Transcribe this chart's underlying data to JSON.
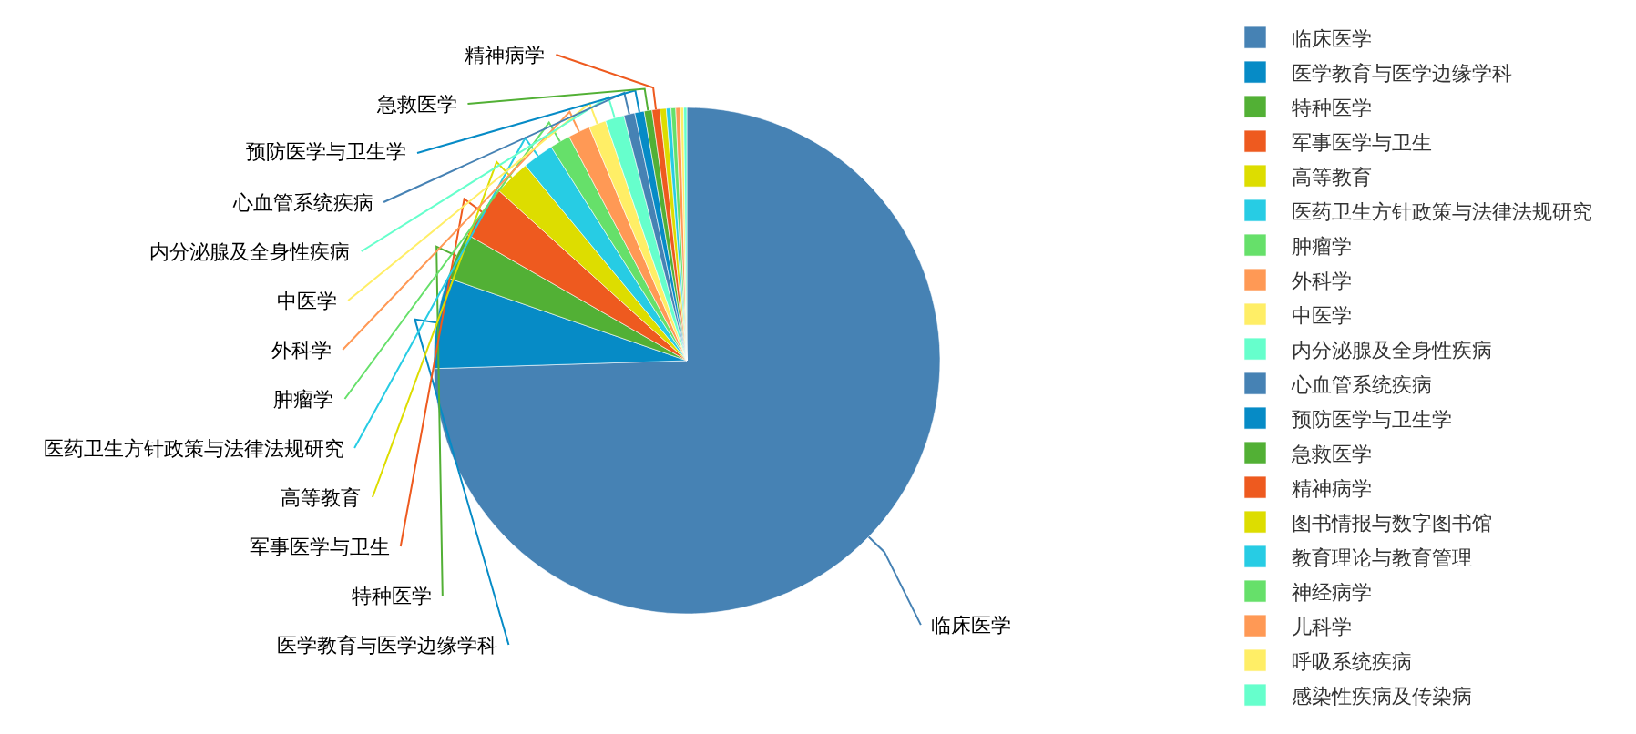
{
  "chart_data": {
    "type": "pie",
    "categories": [
      "临床医学",
      "医学教育与医学边缘学科",
      "特种医学",
      "军事医学与卫生",
      "高等教育",
      "医药卫生方针政策与法律法规研究",
      "肿瘤学",
      "外科学",
      "中医学",
      "内分泌腺及全身性疾病",
      "心血管系统疾病",
      "预防医学与卫生学",
      "急救医学",
      "精神病学",
      "图书情报与数字图书馆",
      "教育理论与教育管理",
      "神经病学",
      "儿科学",
      "呼吸系统疾病",
      "感染性疾病及传染病"
    ],
    "values": [
      74.5,
      5.8,
      3.0,
      3.4,
      2.3,
      2.0,
      1.3,
      1.4,
      1.1,
      1.2,
      0.7,
      0.6,
      0.5,
      0.5,
      0.4,
      0.3,
      0.3,
      0.3,
      0.2,
      0.2
    ],
    "colors": [
      "#4682b4",
      "#068bc6",
      "#52b035",
      "#ee5a1f",
      "#dddd00",
      "#27cce4",
      "#66e06a",
      "#ff9955",
      "#ffee66",
      "#66ffcc",
      "#4682b4",
      "#068bc6",
      "#52b035",
      "#ee5a1f",
      "#dddd00",
      "#27cce4",
      "#66e06a",
      "#ff9955",
      "#ffee66",
      "#66ffcc"
    ],
    "value_labels": [
      "临床医学",
      "医学教育与医学边缘学科",
      "特种医学",
      "军事医学与卫生",
      "高等教育",
      "医药卫生方针政策与法律法规研究",
      "肿瘤学",
      "外科学",
      "中医学",
      "内分泌腺及全身性疾病",
      "心血管系统疾病",
      "预防医学与卫生学",
      "急救医学",
      "精神病学",
      null,
      null,
      null,
      null,
      null,
      null
    ],
    "legend": "right"
  }
}
